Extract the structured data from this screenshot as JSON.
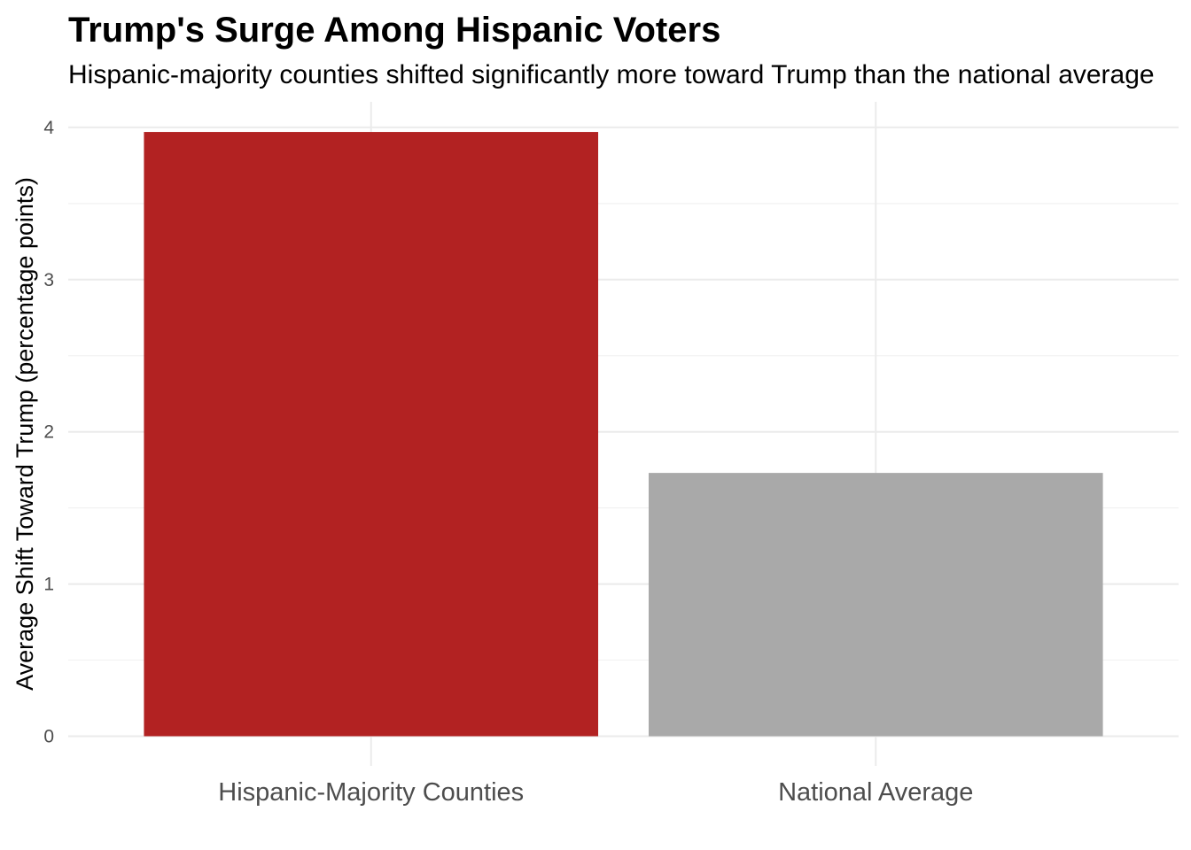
{
  "chart_data": {
    "type": "bar",
    "title": "Trump's Surge Among Hispanic Voters",
    "subtitle": "Hispanic-majority counties shifted significantly more toward Trump than the national average",
    "xlabel": "",
    "ylabel": "Average Shift Toward Trump (percentage points)",
    "categories": [
      "Hispanic-Majority Counties",
      "National Average"
    ],
    "values": [
      3.97,
      1.73
    ],
    "colors": [
      "#B22222",
      "#A9A9A9"
    ],
    "ylim": [
      0,
      4.15
    ],
    "y_ticks": [
      0,
      1,
      2,
      3,
      4
    ],
    "grid": true,
    "legend": "none"
  }
}
